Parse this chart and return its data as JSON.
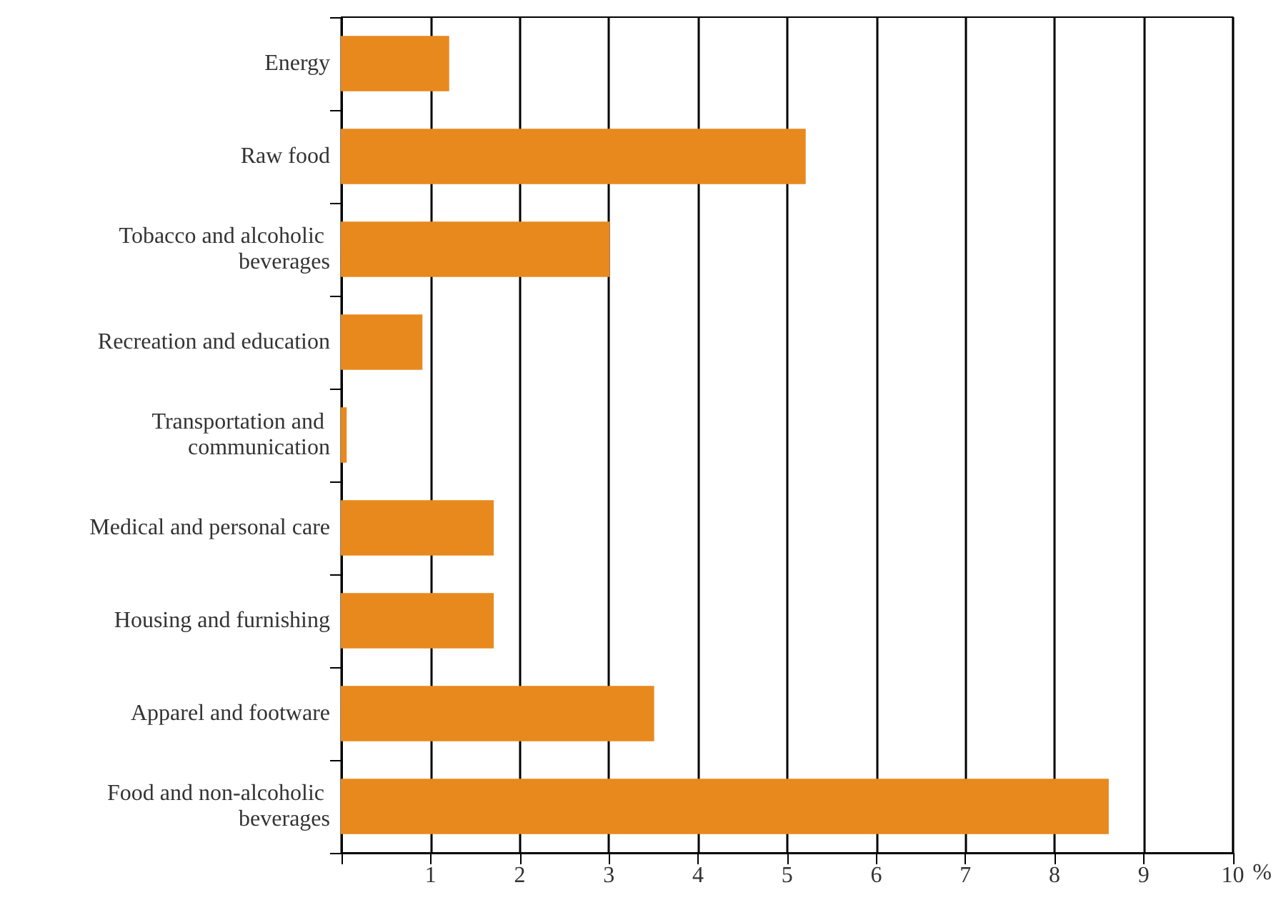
{
  "chart_data": {
    "type": "bar",
    "orientation": "horizontal",
    "xlabel": "%",
    "categories": [
      "Energy",
      "Raw food",
      "Tobacco and alcoholic beverages",
      "Recreation and education",
      "Transportation and communication",
      "Medical and personal care",
      "Housing and furnishing",
      "Apparel and footware",
      "Food and non-alcoholic beverages"
    ],
    "values": [
      1.2,
      5.2,
      3.0,
      0.9,
      0.05,
      1.7,
      1.7,
      3.5,
      8.6
    ],
    "color": "#e8891e",
    "xlim": [
      0,
      10
    ],
    "xticks": [
      {
        "value": 0,
        "label": null
      },
      1,
      2,
      3,
      4,
      5,
      6,
      7,
      8,
      9,
      10
    ],
    "grid": "x"
  }
}
